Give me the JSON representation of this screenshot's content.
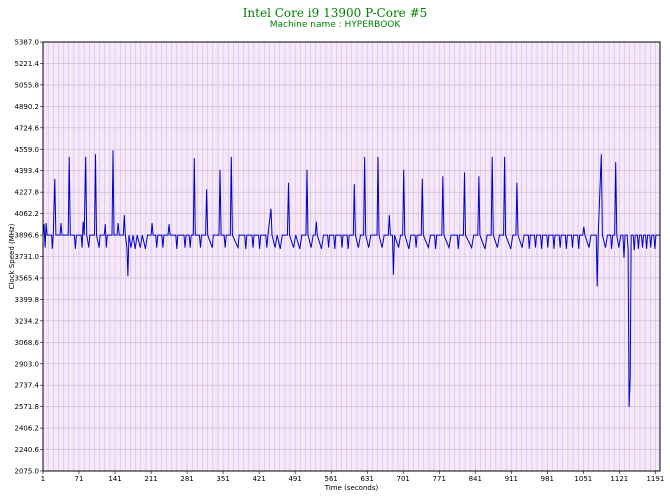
{
  "chart_data": {
    "type": "line",
    "title": "Intel Core i9 13900 P-Core #5",
    "subtitle": "Machine name : HYPERBOOK",
    "xlabel": "Time (seconds)",
    "ylabel": "Clock Speed (MHz)",
    "xlim": [
      1,
      1200
    ],
    "ylim": [
      2075.0,
      5387.0
    ],
    "x_ticks": [
      "1",
      "71",
      "141",
      "211",
      "281",
      "351",
      "421",
      "491",
      "561",
      "631",
      "701",
      "771",
      "841",
      "911",
      "981",
      "1051",
      "1121",
      "1191"
    ],
    "y_ticks": [
      "2075.0",
      "2240.6",
      "2406.2",
      "2571.8",
      "2737.4",
      "2903.0",
      "3068.6",
      "3234.2",
      "3399.8",
      "3565.4",
      "3731.0",
      "3896.6",
      "4062.2",
      "4227.8",
      "4393.4",
      "4559.0",
      "4724.6",
      "4890.2",
      "5055.8",
      "5221.4",
      "5387.0"
    ],
    "grid": true,
    "colors": {
      "plot_bg": "#f5e8f8",
      "line": "#0000cc",
      "grid": "#d0b0d8",
      "title": "#008000"
    },
    "series": [
      {
        "baseline": 3896.6,
        "points": [
          [
            1,
            3896.6
          ],
          [
            3,
            3980
          ],
          [
            5,
            3800
          ],
          [
            7,
            3990
          ],
          [
            9,
            3896.6
          ],
          [
            18,
            3896.6
          ],
          [
            19,
            3790
          ],
          [
            21,
            3896.6
          ],
          [
            24,
            4330
          ],
          [
            26,
            3896.6
          ],
          [
            34,
            3896.6
          ],
          [
            36,
            3990
          ],
          [
            38,
            3896.6
          ],
          [
            50,
            3896.6
          ],
          [
            52,
            4500
          ],
          [
            54,
            3896.6
          ],
          [
            62,
            3896.6
          ],
          [
            64,
            3790
          ],
          [
            66,
            3896.6
          ],
          [
            75,
            3896.6
          ],
          [
            77,
            3800
          ],
          [
            79,
            4000
          ],
          [
            81,
            3896.6
          ],
          [
            84,
            4500
          ],
          [
            86,
            3896.6
          ],
          [
            90,
            3800
          ],
          [
            92,
            3896.6
          ],
          [
            101,
            3896.6
          ],
          [
            103,
            4520
          ],
          [
            105,
            3896.6
          ],
          [
            110,
            3800
          ],
          [
            112,
            3896.6
          ],
          [
            120,
            3896.6
          ],
          [
            122,
            3980
          ],
          [
            124,
            3800
          ],
          [
            126,
            3896.6
          ],
          [
            135,
            3896.6
          ],
          [
            137,
            4550
          ],
          [
            139,
            3896.6
          ],
          [
            145,
            3896.6
          ],
          [
            147,
            3990
          ],
          [
            149,
            3896.6
          ],
          [
            157,
            3896.6
          ],
          [
            159,
            4050
          ],
          [
            161,
            3896.6
          ],
          [
            164,
            3800
          ],
          [
            166,
            3580
          ],
          [
            168,
            3896.6
          ],
          [
            172,
            3800
          ],
          [
            176,
            3896.6
          ],
          [
            180,
            3790
          ],
          [
            184,
            3896.6
          ],
          [
            190,
            3800
          ],
          [
            194,
            3896.6
          ],
          [
            200,
            3790
          ],
          [
            204,
            3896.6
          ],
          [
            211,
            3896.6
          ],
          [
            213,
            3990
          ],
          [
            215,
            3896.6
          ],
          [
            220,
            3896.6
          ],
          [
            222,
            3800
          ],
          [
            224,
            3896.6
          ],
          [
            232,
            3896.6
          ],
          [
            234,
            3800
          ],
          [
            236,
            3896.6
          ],
          [
            244,
            3896.6
          ],
          [
            246,
            3980
          ],
          [
            248,
            3896.6
          ],
          [
            259,
            3896.6
          ],
          [
            261,
            3790
          ],
          [
            263,
            3896.6
          ],
          [
            275,
            3896.6
          ],
          [
            277,
            3800
          ],
          [
            279,
            3896.6
          ],
          [
            285,
            3896.6
          ],
          [
            287,
            3800
          ],
          [
            289,
            3896.6
          ],
          [
            293,
            3896.6
          ],
          [
            295,
            4490
          ],
          [
            297,
            3896.6
          ],
          [
            305,
            3896.6
          ],
          [
            307,
            3800
          ],
          [
            309,
            3896.6
          ],
          [
            317,
            3896.6
          ],
          [
            319,
            4250
          ],
          [
            321,
            3896.6
          ],
          [
            330,
            3800
          ],
          [
            332,
            3896.6
          ],
          [
            343,
            3896.6
          ],
          [
            345,
            4400
          ],
          [
            347,
            3896.6
          ],
          [
            353,
            3896.6
          ],
          [
            355,
            3800
          ],
          [
            357,
            3896.6
          ],
          [
            365,
            3896.6
          ],
          [
            367,
            4500
          ],
          [
            369,
            3896.6
          ],
          [
            380,
            3800
          ],
          [
            382,
            3896.6
          ],
          [
            393,
            3896.6
          ],
          [
            395,
            3790
          ],
          [
            397,
            3896.6
          ],
          [
            407,
            3896.6
          ],
          [
            409,
            3800
          ],
          [
            411,
            3896.6
          ],
          [
            420,
            3896.6
          ],
          [
            422,
            3790
          ],
          [
            424,
            3896.6
          ],
          [
            434,
            3896.6
          ],
          [
            436,
            3800
          ],
          [
            438,
            3896.6
          ],
          [
            444,
            4100
          ],
          [
            446,
            3896.6
          ],
          [
            452,
            3800
          ],
          [
            456,
            3896.6
          ],
          [
            462,
            3790
          ],
          [
            466,
            3896.6
          ],
          [
            476,
            3896.6
          ],
          [
            478,
            4300
          ],
          [
            480,
            3896.6
          ],
          [
            488,
            3800
          ],
          [
            492,
            3896.6
          ],
          [
            500,
            3790
          ],
          [
            504,
            3896.6
          ],
          [
            512,
            3896.6
          ],
          [
            514,
            4400
          ],
          [
            516,
            3896.6
          ],
          [
            522,
            3800
          ],
          [
            526,
            3896.6
          ],
          [
            530,
            3896.6
          ],
          [
            532,
            4000
          ],
          [
            534,
            3896.6
          ],
          [
            542,
            3790
          ],
          [
            546,
            3896.6
          ],
          [
            554,
            3896.6
          ],
          [
            556,
            3800
          ],
          [
            558,
            3896.6
          ],
          [
            566,
            3896.6
          ],
          [
            568,
            3790
          ],
          [
            570,
            3896.6
          ],
          [
            580,
            3896.6
          ],
          [
            582,
            3800
          ],
          [
            584,
            3896.6
          ],
          [
            592,
            3896.6
          ],
          [
            594,
            3790
          ],
          [
            596,
            3896.6
          ],
          [
            604,
            3896.6
          ],
          [
            606,
            4290
          ],
          [
            608,
            3896.6
          ],
          [
            614,
            3800
          ],
          [
            618,
            3896.6
          ],
          [
            624,
            3896.6
          ],
          [
            626,
            4500
          ],
          [
            628,
            3896.6
          ],
          [
            634,
            3800
          ],
          [
            638,
            3896.6
          ],
          [
            650,
            3896.6
          ],
          [
            652,
            4500
          ],
          [
            654,
            3896.6
          ],
          [
            660,
            3800
          ],
          [
            664,
            3896.6
          ],
          [
            672,
            3896.6
          ],
          [
            674,
            4050
          ],
          [
            676,
            3896.6
          ],
          [
            680,
            3896.6
          ],
          [
            682,
            3590
          ],
          [
            684,
            3896.6
          ],
          [
            692,
            3800
          ],
          [
            696,
            3896.6
          ],
          [
            700,
            3896.6
          ],
          [
            702,
            4400
          ],
          [
            704,
            3896.6
          ],
          [
            712,
            3790
          ],
          [
            716,
            3896.6
          ],
          [
            724,
            3896.6
          ],
          [
            726,
            3800
          ],
          [
            728,
            3896.6
          ],
          [
            736,
            3896.6
          ],
          [
            738,
            4330
          ],
          [
            740,
            3896.6
          ],
          [
            750,
            3800
          ],
          [
            754,
            3896.6
          ],
          [
            762,
            3896.6
          ],
          [
            764,
            3790
          ],
          [
            766,
            3896.6
          ],
          [
            776,
            3896.6
          ],
          [
            778,
            4350
          ],
          [
            780,
            3896.6
          ],
          [
            790,
            3800
          ],
          [
            794,
            3896.6
          ],
          [
            806,
            3896.6
          ],
          [
            808,
            3790
          ],
          [
            810,
            3896.6
          ],
          [
            818,
            3896.6
          ],
          [
            820,
            4380
          ],
          [
            822,
            3896.6
          ],
          [
            834,
            3800
          ],
          [
            838,
            3896.6
          ],
          [
            846,
            3896.6
          ],
          [
            848,
            4350
          ],
          [
            850,
            3896.6
          ],
          [
            860,
            3790
          ],
          [
            864,
            3896.6
          ],
          [
            872,
            3896.6
          ],
          [
            874,
            4500
          ],
          [
            876,
            3896.6
          ],
          [
            884,
            3800
          ],
          [
            888,
            3896.6
          ],
          [
            896,
            3896.6
          ],
          [
            898,
            4500
          ],
          [
            900,
            3896.6
          ],
          [
            910,
            3790
          ],
          [
            914,
            3896.6
          ],
          [
            920,
            3896.6
          ],
          [
            922,
            4300
          ],
          [
            924,
            3896.6
          ],
          [
            932,
            3800
          ],
          [
            936,
            3896.6
          ],
          [
            944,
            3896.6
          ],
          [
            946,
            3790
          ],
          [
            948,
            3896.6
          ],
          [
            956,
            3896.6
          ],
          [
            958,
            3800
          ],
          [
            960,
            3896.6
          ],
          [
            968,
            3896.6
          ],
          [
            970,
            3790
          ],
          [
            972,
            3896.6
          ],
          [
            980,
            3896.6
          ],
          [
            982,
            3800
          ],
          [
            984,
            3896.6
          ],
          [
            992,
            3896.6
          ],
          [
            994,
            3790
          ],
          [
            996,
            3896.6
          ],
          [
            1004,
            3896.6
          ],
          [
            1006,
            3800
          ],
          [
            1008,
            3896.6
          ],
          [
            1016,
            3896.6
          ],
          [
            1018,
            3790
          ],
          [
            1020,
            3896.6
          ],
          [
            1028,
            3896.6
          ],
          [
            1030,
            3800
          ],
          [
            1032,
            3896.6
          ],
          [
            1040,
            3896.6
          ],
          [
            1042,
            3790
          ],
          [
            1044,
            3896.6
          ],
          [
            1050,
            3896.6
          ],
          [
            1052,
            3960
          ],
          [
            1054,
            3896.6
          ],
          [
            1062,
            3800
          ],
          [
            1066,
            3896.6
          ],
          [
            1076,
            3896.6
          ],
          [
            1078,
            3500
          ],
          [
            1080,
            3896.6
          ],
          [
            1086,
            4520
          ],
          [
            1088,
            3896.6
          ],
          [
            1094,
            3800
          ],
          [
            1098,
            3896.6
          ],
          [
            1104,
            3896.6
          ],
          [
            1106,
            3790
          ],
          [
            1108,
            3896.6
          ],
          [
            1112,
            3896.6
          ],
          [
            1114,
            4460
          ],
          [
            1116,
            3896.6
          ],
          [
            1120,
            3800
          ],
          [
            1124,
            3896.6
          ],
          [
            1128,
            3896.6
          ],
          [
            1130,
            3720
          ],
          [
            1132,
            3896.6
          ],
          [
            1136,
            3896.6
          ],
          [
            1138,
            3790
          ],
          [
            1140,
            2570
          ],
          [
            1142,
            2790
          ],
          [
            1144,
            3896.6
          ],
          [
            1148,
            3896.6
          ],
          [
            1150,
            3780
          ],
          [
            1152,
            3896.6
          ],
          [
            1156,
            3896.6
          ],
          [
            1158,
            3790
          ],
          [
            1160,
            3896.6
          ],
          [
            1164,
            3896.6
          ],
          [
            1166,
            3800
          ],
          [
            1168,
            3896.6
          ],
          [
            1172,
            3896.6
          ],
          [
            1174,
            3790
          ],
          [
            1176,
            3896.6
          ],
          [
            1180,
            3896.6
          ],
          [
            1182,
            3800
          ],
          [
            1184,
            3896.6
          ],
          [
            1188,
            3896.6
          ],
          [
            1190,
            3790
          ],
          [
            1192,
            3896.6
          ],
          [
            1200,
            3896.6
          ]
        ]
      }
    ]
  }
}
